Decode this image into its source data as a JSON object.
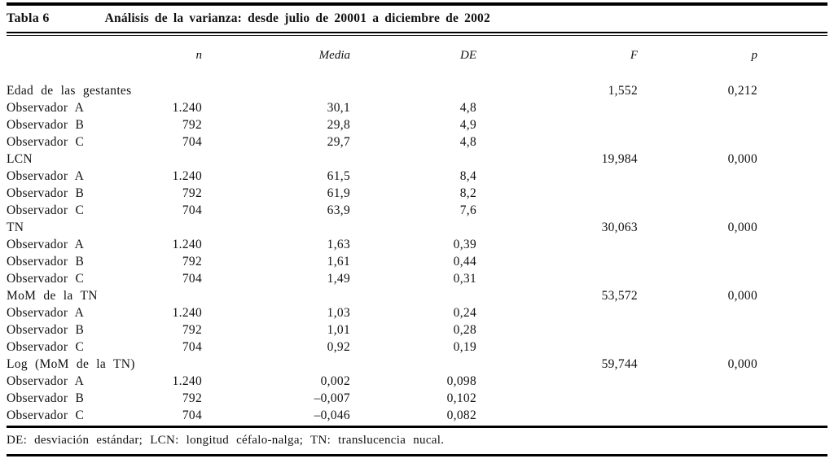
{
  "table": {
    "label": "Tabla 6",
    "title": "Análisis de la varianza: desde julio de 20001 a diciembre de 2002",
    "columns": [
      "n",
      "Media",
      "DE",
      "F",
      "p"
    ],
    "rows": [
      {
        "label": "Edad de las gestantes",
        "n": "",
        "media": "",
        "de": "",
        "f": "1,552",
        "p": "0,212"
      },
      {
        "label": "Observador A",
        "n": "1.240",
        "media": "30,1",
        "de": "4,8",
        "f": "",
        "p": ""
      },
      {
        "label": "Observador B",
        "n": "792",
        "media": "29,8",
        "de": "4,9",
        "f": "",
        "p": ""
      },
      {
        "label": "Observador C",
        "n": "704",
        "media": "29,7",
        "de": "4,8",
        "f": "",
        "p": ""
      },
      {
        "label": "LCN",
        "n": "",
        "media": "",
        "de": "",
        "f": "19,984",
        "p": "0,000"
      },
      {
        "label": "Observador A",
        "n": "1.240",
        "media": "61,5",
        "de": "8,4",
        "f": "",
        "p": ""
      },
      {
        "label": "Observador B",
        "n": "792",
        "media": "61,9",
        "de": "8,2",
        "f": "",
        "p": ""
      },
      {
        "label": "Observador C",
        "n": "704",
        "media": "63,9",
        "de": "7,6",
        "f": "",
        "p": ""
      },
      {
        "label": "TN",
        "n": "",
        "media": "",
        "de": "",
        "f": "30,063",
        "p": "0,000"
      },
      {
        "label": "Observador A",
        "n": "1.240",
        "media": "1,63",
        "de": "0,39",
        "f": "",
        "p": ""
      },
      {
        "label": "Observador B",
        "n": "792",
        "media": "1,61",
        "de": "0,44",
        "f": "",
        "p": ""
      },
      {
        "label": "Observador C",
        "n": "704",
        "media": "1,49",
        "de": "0,31",
        "f": "",
        "p": ""
      },
      {
        "label": "MoM de la TN",
        "n": "",
        "media": "",
        "de": "",
        "f": "53,572",
        "p": "0,000"
      },
      {
        "label": "Observador A",
        "n": "1.240",
        "media": "1,03",
        "de": "0,24",
        "f": "",
        "p": ""
      },
      {
        "label": "Observador B",
        "n": "792",
        "media": "1,01",
        "de": "0,28",
        "f": "",
        "p": ""
      },
      {
        "label": "Observador C",
        "n": "704",
        "media": "0,92",
        "de": "0,19",
        "f": "",
        "p": ""
      },
      {
        "label": "Log (MoM de la TN)",
        "n": "",
        "media": "",
        "de": "",
        "f": "59,744",
        "p": "0,000"
      },
      {
        "label": "Observador A",
        "n": "1.240",
        "media": "0,002",
        "de": "0,098",
        "f": "",
        "p": ""
      },
      {
        "label": "Observador B",
        "n": "792",
        "media": "–0,007",
        "de": "0,102",
        "f": "",
        "p": ""
      },
      {
        "label": "Observador C",
        "n": "704",
        "media": "–0,046",
        "de": "0,082",
        "f": "",
        "p": ""
      }
    ],
    "footnote": "DE: desviación estándar; LCN: longitud céfalo-nalga; TN: translucencia nucal."
  }
}
